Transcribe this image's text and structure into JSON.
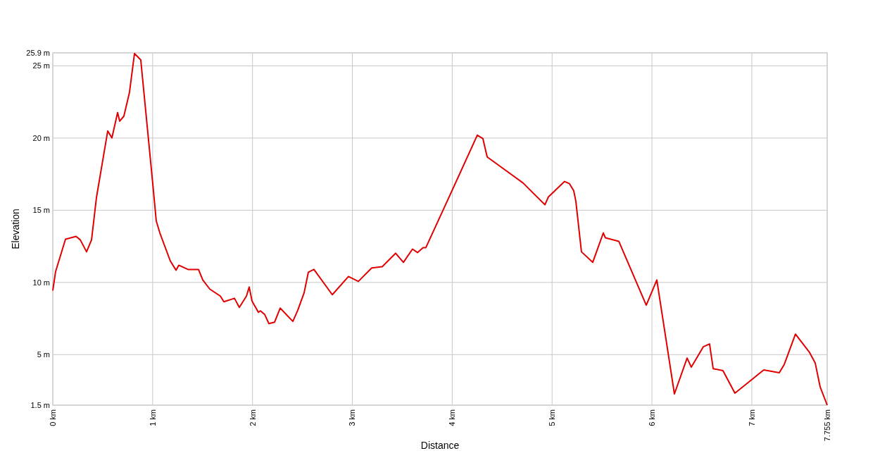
{
  "chart_data": {
    "type": "line",
    "xlabel": "Distance",
    "ylabel": "Elevation",
    "xlim": [
      0,
      7.755
    ],
    "ylim": [
      1.5,
      25.9
    ],
    "xticks": [
      {
        "value": 0,
        "label": "0 km"
      },
      {
        "value": 1,
        "label": "1 km"
      },
      {
        "value": 2,
        "label": "2 km"
      },
      {
        "value": 3,
        "label": "3 km"
      },
      {
        "value": 4,
        "label": "4 km"
      },
      {
        "value": 5,
        "label": "5 km"
      },
      {
        "value": 6,
        "label": "6 km"
      },
      {
        "value": 7,
        "label": "7 km"
      },
      {
        "value": 7.755,
        "label": "7.755 km"
      }
    ],
    "yticks": [
      {
        "value": 1.5,
        "label": "1.5 m"
      },
      {
        "value": 5,
        "label": "5 m"
      },
      {
        "value": 10,
        "label": "10 m"
      },
      {
        "value": 15,
        "label": "15 m"
      },
      {
        "value": 20,
        "label": "20 m"
      },
      {
        "value": 25,
        "label": "25 m"
      },
      {
        "value": 25.9,
        "label": "25.9 m"
      }
    ],
    "grid": true,
    "marker": "none",
    "line_style": "solid",
    "series": [
      {
        "color": "#e00000",
        "x": [
          0,
          0.028,
          0.127,
          0.233,
          0.275,
          0.338,
          0.388,
          0.437,
          0.55,
          0.592,
          0.649,
          0.67,
          0.712,
          0.768,
          0.818,
          0.881,
          1.001,
          1.036,
          1.072,
          1.177,
          1.234,
          1.262,
          1.354,
          1.459,
          1.502,
          1.572,
          1.678,
          1.713,
          1.819,
          1.868,
          1.939,
          1.967,
          1.995,
          2.059,
          2.08,
          2.122,
          2.164,
          2.221,
          2.277,
          2.404,
          2.453,
          2.517,
          2.559,
          2.615,
          2.799,
          2.961,
          3.06,
          3.194,
          3.299,
          3.433,
          3.511,
          3.602,
          3.652,
          3.708,
          3.736,
          4.004,
          4.251,
          4.307,
          4.35,
          4.709,
          4.928,
          4.963,
          5.125,
          5.174,
          5.217,
          5.238,
          5.294,
          5.407,
          5.513,
          5.534,
          5.668,
          5.943,
          6.049,
          6.225,
          6.352,
          6.394,
          6.514,
          6.577,
          6.613,
          6.711,
          6.831,
          7.12,
          7.275,
          7.325,
          7.437,
          7.578,
          7.635,
          7.684,
          7.755
        ],
        "values": [
          9.44,
          10.75,
          12.99,
          13.19,
          12.95,
          12.12,
          12.95,
          15.87,
          20.49,
          20.01,
          21.76,
          21.17,
          21.52,
          23.17,
          25.85,
          25.41,
          16.84,
          14.26,
          13.43,
          11.48,
          10.85,
          11.19,
          10.9,
          10.9,
          10.17,
          9.54,
          9.05,
          8.66,
          8.9,
          8.27,
          9.05,
          9.68,
          8.71,
          7.93,
          8.03,
          7.78,
          7.15,
          7.25,
          8.22,
          7.3,
          8.07,
          9.29,
          10.7,
          10.9,
          9.15,
          10.41,
          10.07,
          11.0,
          11.09,
          12.02,
          11.39,
          12.31,
          12.07,
          12.41,
          12.41,
          16.45,
          20.2,
          19.96,
          18.69,
          16.89,
          15.38,
          15.92,
          16.99,
          16.84,
          16.35,
          15.62,
          12.12,
          11.39,
          13.43,
          13.09,
          12.85,
          8.42,
          10.17,
          2.28,
          4.76,
          4.13,
          5.54,
          5.74,
          4.03,
          3.89,
          2.33,
          3.94,
          3.74,
          4.32,
          6.42,
          5.15,
          4.42,
          2.77,
          1.5
        ]
      }
    ]
  }
}
